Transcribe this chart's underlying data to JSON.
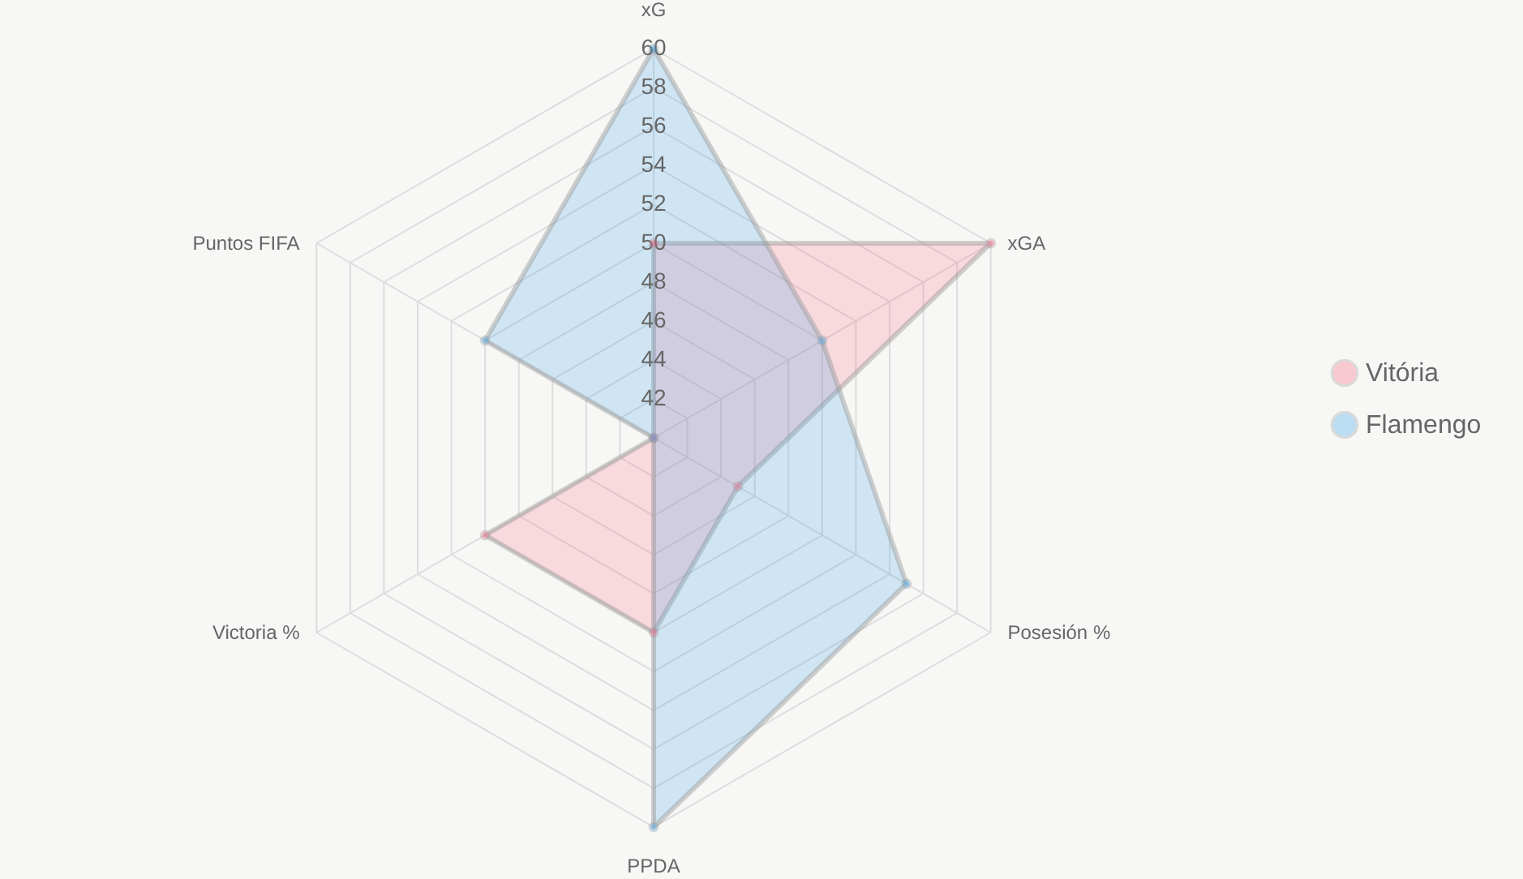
{
  "chart_data": {
    "type": "radar",
    "categories": [
      "xG",
      "xGA",
      "Posesión %",
      "PPDA",
      "Victoria %",
      "Puntos FIFA"
    ],
    "series": [
      {
        "name": "Vitória",
        "color": "#ff6384",
        "values": [
          50,
          60,
          45,
          50,
          50,
          40
        ]
      },
      {
        "name": "Flamengo",
        "color": "#36a2eb",
        "values": [
          60,
          50,
          55,
          60,
          40,
          50
        ]
      }
    ],
    "ylim": [
      40,
      60
    ],
    "yticks": [
      42,
      44,
      46,
      48,
      50,
      52,
      54,
      56,
      58,
      60
    ],
    "grid": true,
    "legend": "right",
    "marker": "circle"
  }
}
